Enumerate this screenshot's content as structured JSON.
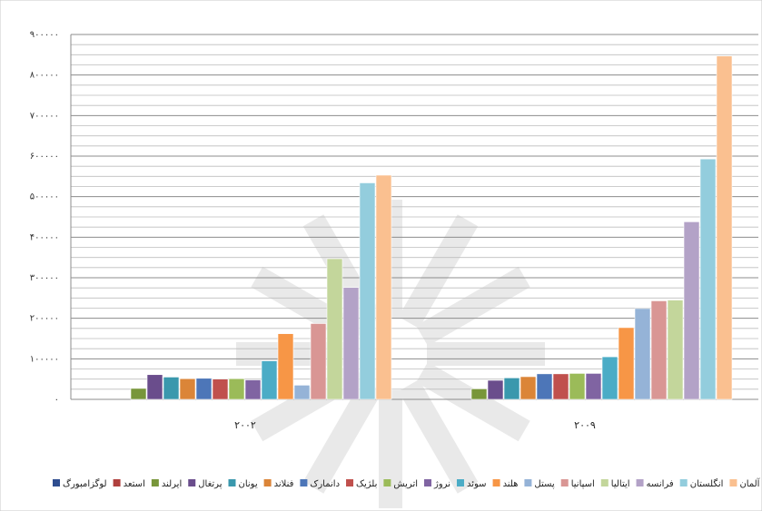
{
  "chart_data": {
    "type": "bar",
    "categories": [
      "۲۰۰۲",
      "۲۰۰۹"
    ],
    "ylim": [
      0,
      900000
    ],
    "yticks": [
      0,
      100000,
      200000,
      300000,
      400000,
      500000,
      600000,
      700000,
      800000,
      900000
    ],
    "ytick_labels": [
      "۰",
      "۱۰۰۰۰۰",
      "۲۰۰۰۰۰",
      "۳۰۰۰۰۰",
      "۴۰۰۰۰۰",
      "۵۰۰۰۰۰",
      "۶۰۰۰۰۰",
      "۷۰۰۰۰۰",
      "۸۰۰۰۰۰",
      "۹۰۰۰۰۰"
    ],
    "grid": true,
    "legend_position": "bottom",
    "series": [
      {
        "name": "لوگزامبورگ",
        "color": "#2e4d8f",
        "values": [
          null,
          null
        ]
      },
      {
        "name": "استعد",
        "color": "#b0403d",
        "values": [
          null,
          null
        ]
      },
      {
        "name": "ایرلند",
        "color": "#78963a",
        "values": [
          27000,
          26000
        ]
      },
      {
        "name": "پرتغال",
        "color": "#6a4d8c",
        "values": [
          61000,
          47000
        ]
      },
      {
        "name": "یونان",
        "color": "#3a98ad",
        "values": [
          55000,
          53000
        ]
      },
      {
        "name": "فنلاند",
        "color": "#db8538",
        "values": [
          51000,
          56000
        ]
      },
      {
        "name": "دانمارک",
        "color": "#4d76b8",
        "values": [
          52000,
          63000
        ]
      },
      {
        "name": "بلژیک",
        "color": "#c0504d",
        "values": [
          50000,
          63000
        ]
      },
      {
        "name": "اتریش",
        "color": "#9bbb59",
        "values": [
          51000,
          64000
        ]
      },
      {
        "name": "نروژ",
        "color": "#8064a2",
        "values": [
          48000,
          64000
        ]
      },
      {
        "name": "سوئد",
        "color": "#4bacc6",
        "values": [
          95000,
          105000
        ]
      },
      {
        "name": "هلند",
        "color": "#f79646",
        "values": [
          162000,
          177000
        ]
      },
      {
        "name": "پستل",
        "color": "#95b3d7",
        "values": [
          35000,
          224000
        ]
      },
      {
        "name": "اسپانیا",
        "color": "#d99694",
        "values": [
          187000,
          243000
        ]
      },
      {
        "name": "ایتالیا",
        "color": "#c3d69b",
        "values": [
          347000,
          245000
        ]
      },
      {
        "name": "فرانسه",
        "color": "#b3a2c7",
        "values": [
          276000,
          438000
        ]
      },
      {
        "name": "انگلستان",
        "color": "#93cddd",
        "values": [
          534000,
          593000
        ]
      },
      {
        "name": "آلمان",
        "color": "#fac090",
        "values": [
          553000,
          847000
        ]
      }
    ]
  }
}
